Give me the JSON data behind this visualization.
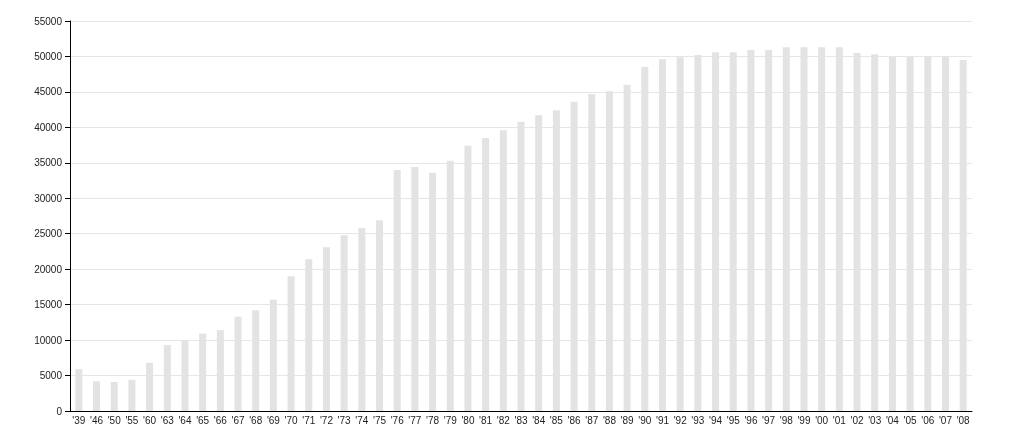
{
  "chart_data": {
    "type": "bar",
    "categories": [
      "'39",
      "'46",
      "'50",
      "'55",
      "'60",
      "'63",
      "'64",
      "'65",
      "'66",
      "'67",
      "'68",
      "'69",
      "'70",
      "'71",
      "'72",
      "'73",
      "'74",
      "'75",
      "'76",
      "'77",
      "'78",
      "'79",
      "'80",
      "'81",
      "'82",
      "'83",
      "'84",
      "'85",
      "'86",
      "'87",
      "'88",
      "'89",
      "'90",
      "'91",
      "'92",
      "'93",
      "'94",
      "'95",
      "'96",
      "'97",
      "'98",
      "'99",
      "'00",
      "'01",
      "'02",
      "'03",
      "'04",
      "'05",
      "'06",
      "'07",
      "'08"
    ],
    "values": [
      5900,
      4200,
      4100,
      4400,
      6800,
      9300,
      9900,
      10900,
      11400,
      13300,
      14200,
      15700,
      19000,
      21400,
      23100,
      24800,
      25800,
      26900,
      34000,
      34400,
      33600,
      35300,
      37400,
      38500,
      39600,
      40800,
      41700,
      42400,
      43600,
      44700,
      45100,
      46000,
      48500,
      49600,
      49900,
      50200,
      50600,
      50600,
      50900,
      50900,
      51300,
      51300,
      51300,
      51300,
      50500,
      50300,
      50000,
      50000,
      50000,
      50000,
      49500
    ],
    "color": "#e3e3e3",
    "ylim": [
      0,
      55000
    ],
    "yticks": [
      0,
      5000,
      10000,
      15000,
      20000,
      25000,
      30000,
      35000,
      40000,
      45000,
      50000,
      55000
    ],
    "grid": "y"
  }
}
